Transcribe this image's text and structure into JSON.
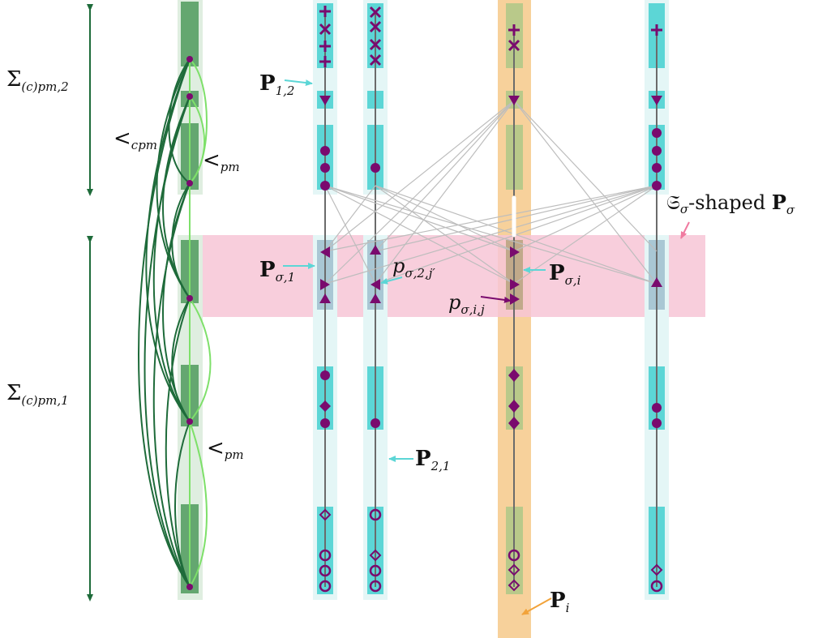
{
  "labels": {
    "sigma_pm2": {
      "main": "Σ",
      "sub": "(c)pm,2"
    },
    "sigma_pm1": {
      "main": "Σ",
      "sub": "(c)pm,1"
    },
    "less_cpm": {
      "main": "<",
      "sub": "cpm"
    },
    "less_pm_top": {
      "main": "<",
      "sub": "pm"
    },
    "less_pm_bottom": {
      "main": "<",
      "sub": "pm"
    },
    "P_1_2": {
      "main": "P",
      "sub": "1,2"
    },
    "P_2_1": {
      "main": "P",
      "sub": "2,1"
    },
    "P_sigma_1": {
      "main": "P",
      "sub": "σ,1"
    },
    "P_sigma_i": {
      "main": "P",
      "sub": "σ,i"
    },
    "p_sigma_2_j": {
      "main": "p",
      "sub": "σ,2,j′"
    },
    "p_sigma_i_j": {
      "main": "p",
      "sub": "σ,i,j"
    },
    "S_sigma_shaped": {
      "prefix": "𝔖",
      "prefix_sub": "σ",
      "middle": "-shaped ",
      "main": "P",
      "sub": "σ"
    },
    "P_i": {
      "main": "P",
      "sub": "i"
    }
  },
  "colors": {
    "dark_green": "#1e6b3a",
    "light_green": "#7ee06a",
    "purple": "#7a0a6e",
    "cyan": "#5cd6d6",
    "pink": "#f7c6d6",
    "orange": "#f6c98a",
    "grey_line": "#b8b8b8"
  }
}
